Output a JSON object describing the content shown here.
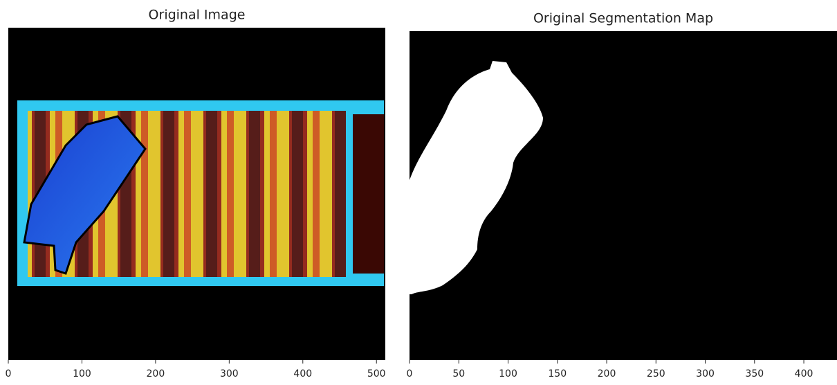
{
  "chart_data": [
    {
      "type": "image",
      "title": "Original Image",
      "xlim": [
        0,
        512
      ],
      "xticks": [
        0,
        100,
        200,
        300,
        400,
        500
      ]
    },
    {
      "type": "image",
      "title": "Original Segmentation Map",
      "xlim": [
        0,
        434
      ],
      "xticks": [
        0,
        50,
        100,
        150,
        200,
        250,
        300,
        350,
        400
      ]
    }
  ]
}
